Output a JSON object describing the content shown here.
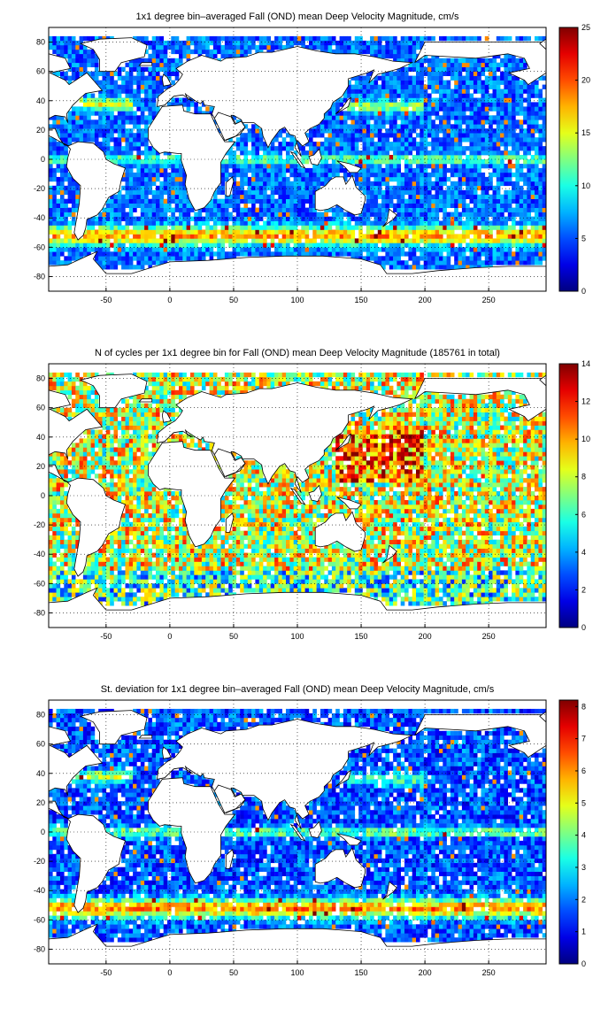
{
  "panels": [
    {
      "title": "1x1 degree bin–averaged Fall (OND) mean Deep Velocity Magnitude, cm/s",
      "x_ticks": [
        "-50",
        "0",
        "50",
        "100",
        "150",
        "200",
        "250"
      ],
      "y_ticks": [
        "80",
        "60",
        "40",
        "20",
        "0",
        "-20",
        "-40",
        "-60",
        "-80"
      ],
      "colorbar_ticks": [
        "25",
        "20",
        "15",
        "10",
        "5",
        "0"
      ],
      "colorbar_max": 25
    },
    {
      "title": "N of cycles per 1x1 degree bin for Fall (OND) mean Deep Velocity Magnitude (185761 in total)",
      "x_ticks": [
        "-50",
        "0",
        "50",
        "100",
        "150",
        "200",
        "250"
      ],
      "y_ticks": [
        "80",
        "60",
        "40",
        "20",
        "0",
        "-20",
        "-40",
        "-60",
        "-80"
      ],
      "colorbar_ticks": [
        "14",
        "12",
        "10",
        "8",
        "6",
        "4",
        "2",
        "0"
      ],
      "colorbar_max": 14
    },
    {
      "title": "St. deviation for 1x1 degree bin–averaged Fall (OND) mean Deep Velocity Magnitude, cm/s",
      "x_ticks": [
        "-50",
        "0",
        "50",
        "100",
        "150",
        "200",
        "250"
      ],
      "y_ticks": [
        "80",
        "60",
        "40",
        "20",
        "0",
        "-20",
        "-40",
        "-60",
        "-80"
      ],
      "colorbar_ticks": [
        "8",
        "7",
        "6",
        "5",
        "4",
        "3",
        "2",
        "1",
        "0"
      ],
      "colorbar_max": 8.2
    }
  ],
  "map": {
    "x_range": [
      -95,
      295
    ],
    "y_range": [
      -90,
      90
    ],
    "grid": "dotted",
    "colormap": "jet"
  }
}
